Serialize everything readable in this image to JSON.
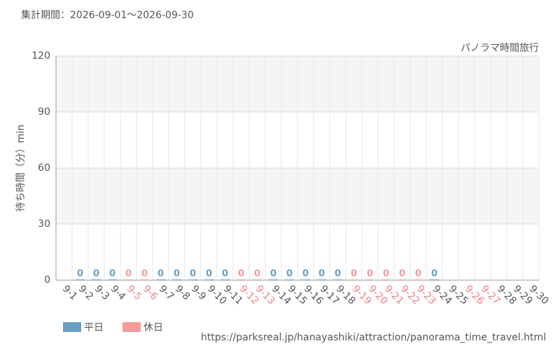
{
  "chart_data": {
    "type": "bar",
    "title": "集計期間：2026-09-01〜2026-09-30",
    "subtitle": "パノラマ時間旅行",
    "y_label": "待ち時間（分）min",
    "source": "https://parksreal.jp/hanayashiki/attraction/panorama_time_travel.html",
    "categories": [
      "9-1",
      "9-2",
      "9-3",
      "9-4",
      "9-5",
      "9-6",
      "9-7",
      "9-8",
      "9-9",
      "9-10",
      "9-11",
      "9-12",
      "9-13",
      "9-14",
      "9-15",
      "9-16",
      "9-17",
      "9-18",
      "9-19",
      "9-20",
      "9-21",
      "9-22",
      "9-23",
      "9-24",
      "9-25",
      "9-26",
      "9-27",
      "9-28",
      "9-29",
      "9-30"
    ],
    "category_label_colors": [
      "#555",
      "#555",
      "#555",
      "#555",
      "#f08080",
      "#f08080",
      "#555",
      "#555",
      "#555",
      "#555",
      "#555",
      "#f08080",
      "#f08080",
      "#555",
      "#555",
      "#555",
      "#555",
      "#555",
      "#f08080",
      "#f08080",
      "#f08080",
      "#f08080",
      "#f08080",
      "#555",
      "#555",
      "#f08080",
      "#f08080",
      "#555",
      "#555",
      "#555"
    ],
    "series": [
      {
        "name": "平日",
        "color": "#6a9ec5",
        "values": [
          null,
          0,
          0,
          0,
          null,
          null,
          0,
          0,
          0,
          0,
          0,
          null,
          null,
          0,
          0,
          0,
          0,
          0,
          null,
          null,
          null,
          null,
          null,
          0,
          null,
          null,
          null,
          null,
          null,
          null
        ]
      },
      {
        "name": "休日",
        "color": "#f59a9a",
        "values": [
          null,
          null,
          null,
          null,
          0,
          0,
          null,
          null,
          null,
          null,
          null,
          0,
          0,
          null,
          null,
          null,
          null,
          null,
          0,
          0,
          0,
          0,
          0,
          null,
          null,
          null,
          null,
          null,
          null,
          null
        ]
      }
    ],
    "ylim": [
      0,
      120
    ],
    "yticks": [
      0,
      30,
      60,
      90,
      120
    ],
    "grid": true
  }
}
